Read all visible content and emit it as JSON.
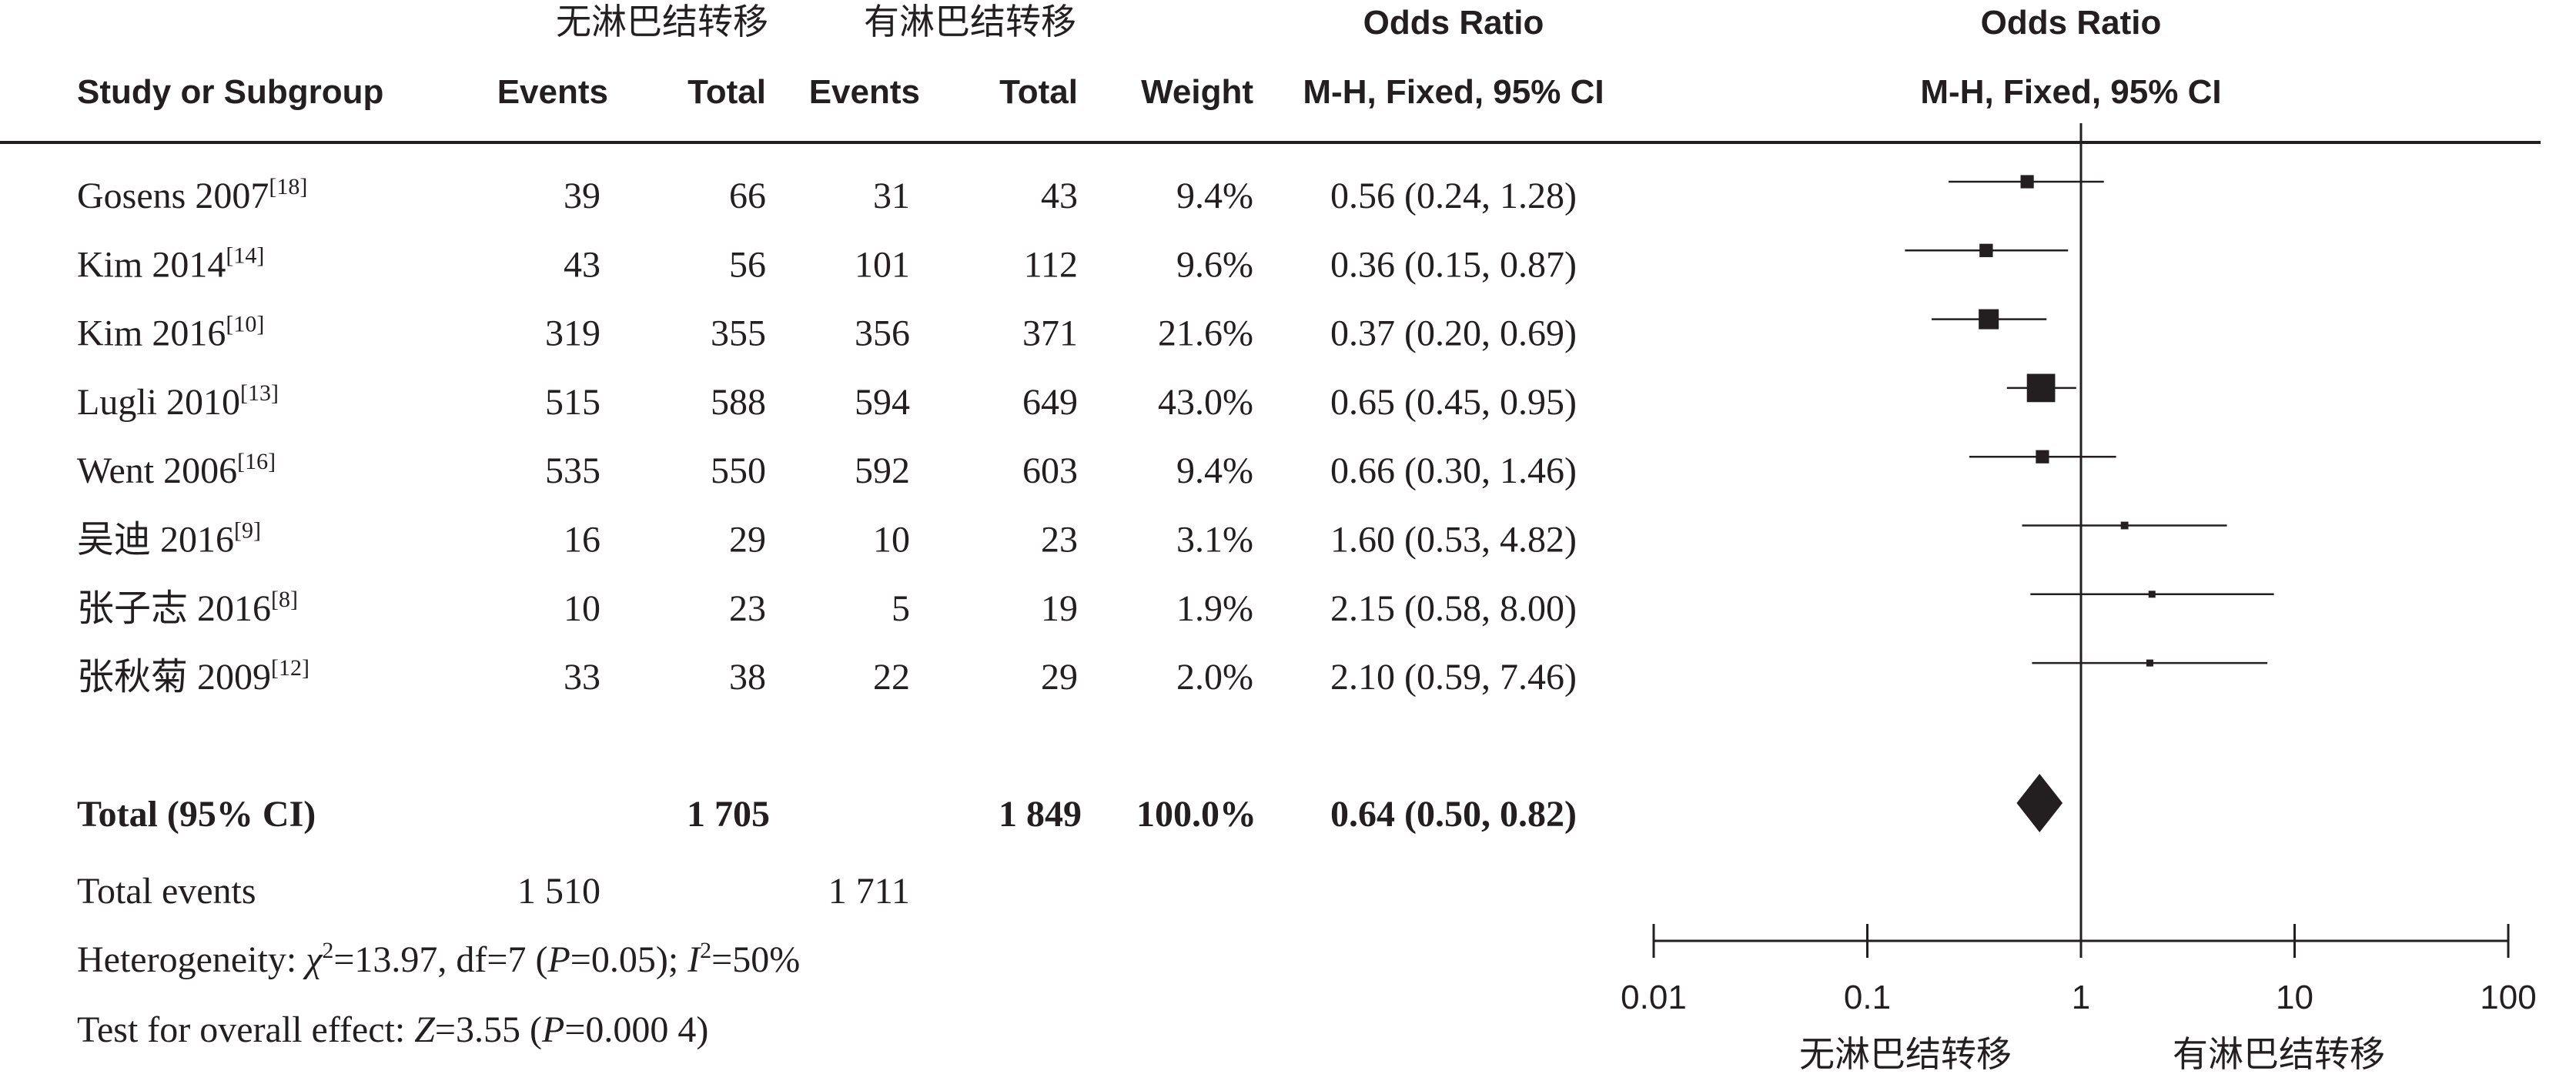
{
  "header": {
    "group1_label": "无淋巴结转移",
    "group2_label": "有淋巴结转移",
    "or_title_table": "Odds Ratio",
    "or_method_table": "M-H, Fixed, 95% CI",
    "or_title_plot": "Odds Ratio",
    "or_method_plot": "M-H, Fixed, 95% CI",
    "col_study": "Study or Subgroup",
    "col_events1": "Events",
    "col_total1": "Total",
    "col_events2": "Events",
    "col_total2": "Total",
    "col_weight": "Weight"
  },
  "studies": [
    {
      "name": "Gosens 2007",
      "ref": "[18]",
      "events1": "39",
      "total1": "66",
      "events2": "31",
      "total2": "43",
      "weight": "9.4%",
      "or_text": "0.56 (0.24, 1.28)"
    },
    {
      "name": "Kim 2014",
      "ref": "[14]",
      "events1": "43",
      "total1": "56",
      "events2": "101",
      "total2": "112",
      "weight": "9.6%",
      "or_text": "0.36 (0.15, 0.87)"
    },
    {
      "name": "Kim 2016",
      "ref": "[10]",
      "events1": "319",
      "total1": "355",
      "events2": "356",
      "total2": "371",
      "weight": "21.6%",
      "or_text": "0.37 (0.20, 0.69)"
    },
    {
      "name": "Lugli 2010",
      "ref": "[13]",
      "events1": "515",
      "total1": "588",
      "events2": "594",
      "total2": "649",
      "weight": "43.0%",
      "or_text": "0.65 (0.45, 0.95)"
    },
    {
      "name": "Went 2006",
      "ref": "[16]",
      "events1": "535",
      "total1": "550",
      "events2": "592",
      "total2": "603",
      "weight": "9.4%",
      "or_text": "0.66 (0.30, 1.46)"
    },
    {
      "name": "吴迪 2016",
      "ref": "[9]",
      "events1": "16",
      "total1": "29",
      "events2": "10",
      "total2": "23",
      "weight": "3.1%",
      "or_text": "1.60 (0.53, 4.82)"
    },
    {
      "name": "张子志 2016",
      "ref": "[8]",
      "events1": "10",
      "total1": "23",
      "events2": "5",
      "total2": "19",
      "weight": "1.9%",
      "or_text": "2.15 (0.58, 8.00)"
    },
    {
      "name": "张秋菊 2009",
      "ref": "[12]",
      "events1": "33",
      "total1": "38",
      "events2": "22",
      "total2": "29",
      "weight": "2.0%",
      "or_text": "2.10 (0.59, 7.46)"
    }
  ],
  "total": {
    "label": "Total (95% CI)",
    "total1": "1 705",
    "total2": "1 849",
    "weight": "100.0%",
    "or_text": "0.64 (0.50, 0.82)"
  },
  "footer": {
    "events_label": "Total events",
    "events1": "1 510",
    "events2": "1 711",
    "het_prefix": "Heterogeneity: ",
    "het_chi": "χ",
    "het_chi_sup": "2",
    "het_mid": "=13.97, df=7 (",
    "het_p": "P",
    "het_pval": "=0.05); ",
    "het_i": "I",
    "het_i_sup": "2",
    "het_ival": "=50%",
    "effect_prefix": "Test for overall effect: ",
    "effect_z": "Z",
    "effect_zval": "=3.55 (",
    "effect_p": "P",
    "effect_pval": "=0.000 4)"
  },
  "axis": {
    "ticks": [
      "0.01",
      "0.1",
      "1",
      "10",
      "100"
    ],
    "favours_left": "无淋巴结转移",
    "favours_right": "有淋巴结转移"
  },
  "chart_data": {
    "type": "forest",
    "scale": "log",
    "xlim": [
      0.01,
      100
    ],
    "null_line": 1,
    "xticks": [
      0.01,
      0.1,
      1,
      10,
      100
    ],
    "studies": [
      {
        "name": "Gosens 2007",
        "or": 0.56,
        "lo": 0.24,
        "hi": 1.28,
        "weight": 9.4
      },
      {
        "name": "Kim 2014",
        "or": 0.36,
        "lo": 0.15,
        "hi": 0.87,
        "weight": 9.6
      },
      {
        "name": "Kim 2016",
        "or": 0.37,
        "lo": 0.2,
        "hi": 0.69,
        "weight": 21.6
      },
      {
        "name": "Lugli 2010",
        "or": 0.65,
        "lo": 0.45,
        "hi": 0.95,
        "weight": 43.0
      },
      {
        "name": "Went 2006",
        "or": 0.66,
        "lo": 0.3,
        "hi": 1.46,
        "weight": 9.4
      },
      {
        "name": "吴迪 2016",
        "or": 1.6,
        "lo": 0.53,
        "hi": 4.82,
        "weight": 3.1
      },
      {
        "name": "张子志 2016",
        "or": 2.15,
        "lo": 0.58,
        "hi": 8.0,
        "weight": 1.9
      },
      {
        "name": "张秋菊 2009",
        "or": 2.1,
        "lo": 0.59,
        "hi": 7.46,
        "weight": 2.0
      }
    ],
    "pooled": {
      "or": 0.64,
      "lo": 0.5,
      "hi": 0.82,
      "weight": 100.0
    }
  }
}
